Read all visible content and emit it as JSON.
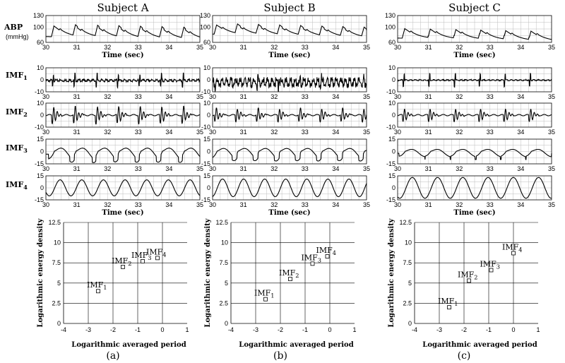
{
  "figure": {
    "columns": [
      {
        "title": "Subject A",
        "panel_label": "(a)"
      },
      {
        "title": "Subject B",
        "panel_label": "(b)"
      },
      {
        "title": "Subject C",
        "panel_label": "(c)"
      }
    ],
    "abp_label": "ABP",
    "abp_unit": "(mmHg)",
    "time_label": "Time (sec)",
    "imf_row_labels": [
      {
        "base": "IMF",
        "sub": "1"
      },
      {
        "base": "IMF",
        "sub": "2"
      },
      {
        "base": "IMF",
        "sub": "3"
      },
      {
        "base": "IMF",
        "sub": "4"
      }
    ],
    "scatter_xlabel": "Logarithmic averaged period",
    "scatter_ylabel": "Logarithmic energy density"
  },
  "chart_data": [
    {
      "type": "line",
      "row": "ABP",
      "subjects": [
        "Subject A",
        "Subject B",
        "Subject C"
      ],
      "x_range": [
        30,
        35
      ],
      "x_ticks": [
        30,
        31,
        32,
        33,
        34,
        35
      ],
      "y_ticks": [
        60,
        100,
        130
      ],
      "ylim": [
        60,
        130
      ],
      "series": [
        {
          "subject": "Subject A",
          "beat_times": [
            30.18,
            30.88,
            31.6,
            32.29,
            32.99,
            33.69,
            34.4
          ],
          "baseline": [
            85,
            76
          ],
          "amplitude": 28
        },
        {
          "subject": "Subject B",
          "beat_times": [
            30.05,
            30.73,
            31.41,
            32.1,
            32.78,
            33.47,
            34.15,
            34.84
          ],
          "baseline": [
            90,
            80
          ],
          "amplitude": 24
        },
        {
          "subject": "Subject C",
          "beat_times": [
            30.15,
            30.98,
            31.81,
            32.62,
            33.43,
            34.25
          ],
          "baseline": [
            80,
            72
          ],
          "amplitude": 25
        }
      ],
      "grid": true
    },
    {
      "type": "line",
      "row": "IMF1",
      "x_range": [
        30,
        35
      ],
      "x_ticks": [
        30,
        31,
        32,
        33,
        34,
        35
      ],
      "y_ticks": [
        -10,
        0,
        10
      ],
      "ylim": [
        -10,
        10
      ],
      "series": [
        {
          "subject": "Subject A",
          "spike_amplitude": 6,
          "noise": 0.6
        },
        {
          "subject": "Subject B",
          "spike_amplitude": 4,
          "noise": 2.2
        },
        {
          "subject": "Subject C",
          "spike_amplitude": 6,
          "noise": 0.3
        }
      ],
      "grid": true
    },
    {
      "type": "line",
      "row": "IMF2",
      "x_range": [
        30,
        35
      ],
      "x_ticks": [
        30,
        31,
        32,
        33,
        34,
        35
      ],
      "y_ticks": [
        -10,
        0,
        10
      ],
      "ylim": [
        -10,
        10
      ],
      "series": [
        {
          "subject": "Subject A",
          "burst_amplitude": 9
        },
        {
          "subject": "Subject B",
          "burst_amplitude": 7
        },
        {
          "subject": "Subject C",
          "burst_amplitude": 7
        }
      ],
      "grid": true
    },
    {
      "type": "line",
      "row": "IMF3",
      "x_range": [
        30,
        35
      ],
      "x_ticks": [
        30,
        31,
        32,
        33,
        34,
        35
      ],
      "y_ticks": [
        -15,
        0,
        15
      ],
      "ylim": [
        -15,
        15
      ],
      "series": [
        {
          "subject": "Subject A",
          "amplitude": 11
        },
        {
          "subject": "Subject B",
          "amplitude": 10
        },
        {
          "subject": "Subject C",
          "amplitude": 7
        }
      ],
      "grid": true
    },
    {
      "type": "line",
      "row": "IMF4",
      "x_range": [
        30,
        35
      ],
      "x_ticks": [
        30,
        31,
        32,
        33,
        34,
        35
      ],
      "y_ticks": [
        -15,
        0,
        15
      ],
      "ylim": [
        -15,
        15
      ],
      "series": [
        {
          "subject": "Subject A",
          "amplitude": 10
        },
        {
          "subject": "Subject B",
          "amplitude": 11
        },
        {
          "subject": "Subject C",
          "amplitude": 13
        }
      ],
      "grid": true
    },
    {
      "type": "scatter",
      "panel": "(a)",
      "subject": "Subject A",
      "xlim": [
        -4,
        1
      ],
      "ylim": [
        0,
        12.5
      ],
      "x_ticks": [
        -4,
        -3,
        -2,
        -1,
        0,
        1
      ],
      "y_ticks": [
        0,
        2.5,
        5,
        7.5,
        10,
        12.5
      ],
      "points": [
        {
          "label": "IMF",
          "sub": "1",
          "x": -2.6,
          "y": 4
        },
        {
          "label": "IMF",
          "sub": "2",
          "x": -1.6,
          "y": 7
        },
        {
          "label": "IMF",
          "sub": "3",
          "x": -0.8,
          "y": 7.7
        },
        {
          "label": "IMF",
          "sub": "4",
          "x": -0.2,
          "y": 8.1
        }
      ]
    },
    {
      "type": "scatter",
      "panel": "(b)",
      "subject": "Subject B",
      "xlim": [
        -4,
        1
      ],
      "ylim": [
        0,
        12.5
      ],
      "x_ticks": [
        -4,
        -3,
        -2,
        -1,
        0,
        1
      ],
      "y_ticks": [
        0,
        2.5,
        5,
        7.5,
        10,
        12.5
      ],
      "points": [
        {
          "label": "IMF",
          "sub": "1",
          "x": -2.6,
          "y": 3
        },
        {
          "label": "IMF",
          "sub": "2",
          "x": -1.6,
          "y": 5.5
        },
        {
          "label": "IMF",
          "sub": "3",
          "x": -0.7,
          "y": 7.4
        },
        {
          "label": "IMF",
          "sub": "4",
          "x": -0.1,
          "y": 8.3
        }
      ]
    },
    {
      "type": "scatter",
      "panel": "(c)",
      "subject": "Subject C",
      "xlim": [
        -4,
        1
      ],
      "ylim": [
        0,
        12.5
      ],
      "x_ticks": [
        -4,
        -3,
        -2,
        -1,
        0,
        1
      ],
      "y_ticks": [
        0,
        2.5,
        5,
        7.5,
        10,
        12.5
      ],
      "points": [
        {
          "label": "IMF",
          "sub": "1",
          "x": -2.6,
          "y": 2
        },
        {
          "label": "IMF",
          "sub": "2",
          "x": -1.8,
          "y": 5.3
        },
        {
          "label": "IMF",
          "sub": "3",
          "x": -0.9,
          "y": 6.6
        },
        {
          "label": "IMF",
          "sub": "4",
          "x": 0,
          "y": 8.7
        }
      ]
    }
  ]
}
